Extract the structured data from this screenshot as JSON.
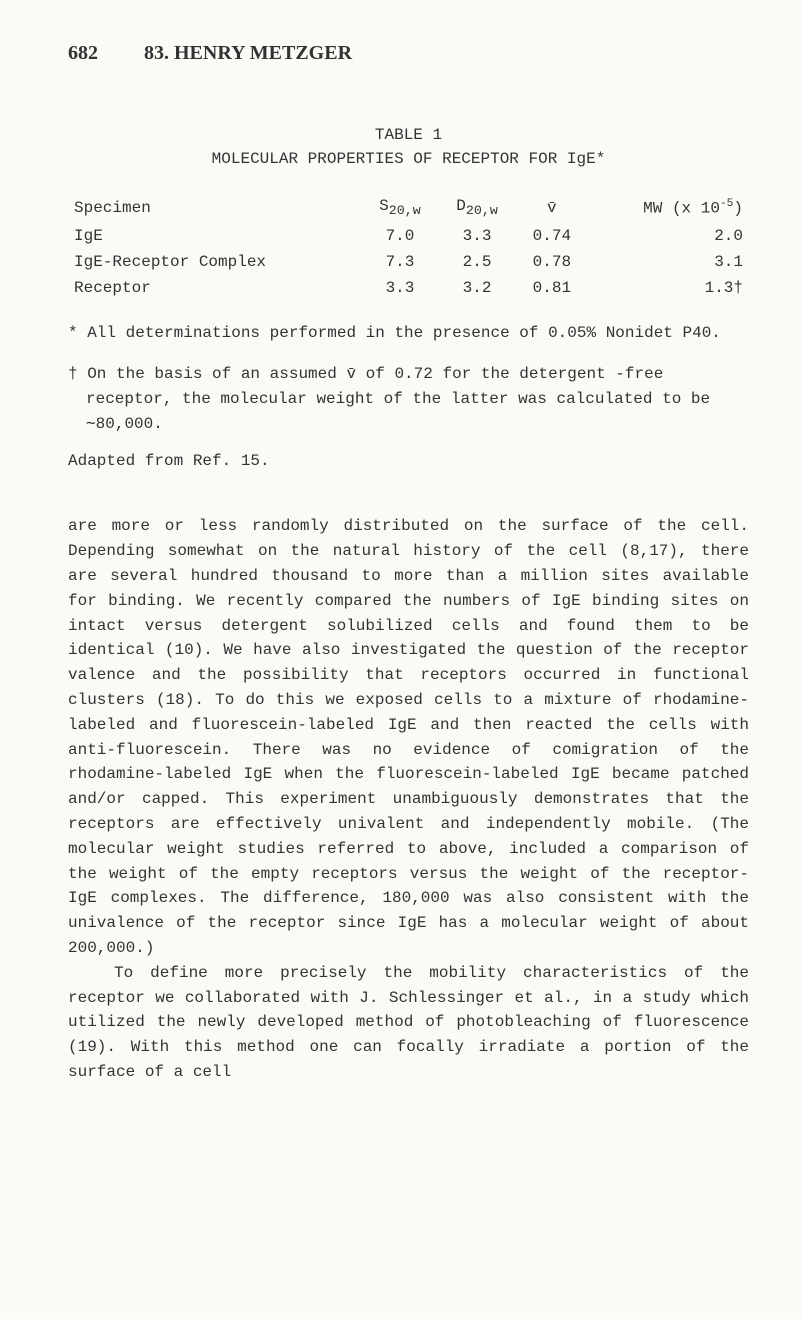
{
  "header": {
    "page_number": "682",
    "chapter_title": "83. HENRY METZGER"
  },
  "table": {
    "caption_line1": "TABLE 1",
    "caption_line2": "MOLECULAR PROPERTIES OF RECEPTOR FOR IgE*",
    "columns": {
      "c0": "Specimen",
      "c1_html": "S<sub>20,w</sub>",
      "c2_html": "D<sub>20,w</sub>",
      "c3_html": "v̄",
      "c4_html": "MW (x 10<sup>-5</sup>)"
    },
    "rows": [
      {
        "specimen": "IgE",
        "s20w": "7.0",
        "d20w": "3.3",
        "vbar": "0.74",
        "mw": "2.0"
      },
      {
        "specimen": "IgE-Receptor Complex",
        "s20w": "7.3",
        "d20w": "2.5",
        "vbar": "0.78",
        "mw": "3.1"
      },
      {
        "specimen": "Receptor",
        "s20w": "3.3",
        "d20w": "3.2",
        "vbar": "0.81",
        "mw": "1.3†"
      }
    ]
  },
  "footnotes": {
    "star": "* All determinations performed in the presence of 0.05% Nonidet P40.",
    "dagger": "† On the basis of an assumed v̄ of 0.72 for the detergent -free receptor, the molecular weight of the latter was calculated to be ∼80,000.",
    "adapted": "Adapted from Ref. 15."
  },
  "body": {
    "p1": "are more or less randomly distributed on the surface of the cell.  Depending somewhat on the natural history of the cell (8,17), there are several hundred thousand to more than a million sites available for binding.  We recently compared the numbers of IgE binding sites on intact versus detergent solubilized cells and found them to be identical (10).  We have also investigated the question of the receptor valence and the possibility that receptors occurred in functional clusters (18).  To do this we exposed cells to a mixture of rhodamine-labeled and fluorescein-labeled IgE and then reacted the cells with anti-fluorescein.  There was no evidence of comigration of the rhodamine-labeled IgE when the fluorescein-labeled IgE became patched and/or capped.  This experiment unambiguously demonstrates that the receptors are effectively univalent and independently mobile.  (The molecular weight studies referred to above, included a comparison of the weight of the empty receptors versus the weight of the receptor-IgE complexes.  The difference, 180,000 was also consistent with the univalence of the receptor since IgE has a molecular weight of about 200,000.)",
    "p2": "To define more precisely the mobility characteristics of the receptor we collaborated with J. Schlessinger et al., in a study which utilized the newly developed method of photobleaching of fluorescence (19).  With this method one can focally irradiate a portion of the surface of a cell"
  }
}
